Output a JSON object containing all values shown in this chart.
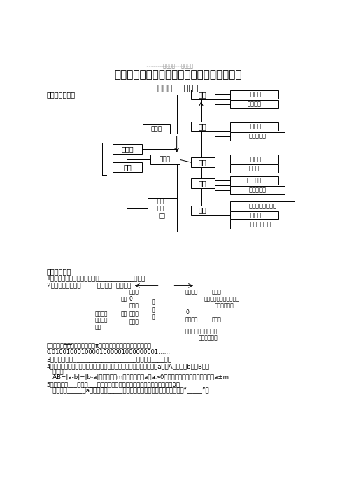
{
  "title": "新课标人教版数学七年级（上）知识要点概括",
  "subtitle": "学习必备    免费下载",
  "chapter": "第一章    有理数",
  "section1": "一、知识结构：",
  "section2": "二、知识点：",
  "bg_color": "#ffffff",
  "right_boxes": [
    [
      "加法法则",
      345,
      58,
      88,
      16
    ],
    [
      "加法运算",
      345,
      76,
      88,
      16
    ],
    [
      "减法法则",
      345,
      118,
      88,
      16
    ],
    [
      "加减混合运",
      345,
      136,
      100,
      16
    ],
    [
      "乘法法则",
      345,
      178,
      88,
      16
    ],
    [
      "运算律",
      345,
      196,
      88,
      16
    ],
    [
      "除 法 法",
      345,
      218,
      88,
      16
    ],
    [
      "乘除混合运",
      345,
      236,
      100,
      16
    ],
    [
      "乘方运算、混合运",
      345,
      265,
      118,
      16
    ],
    [
      "科学记数",
      345,
      283,
      88,
      14
    ],
    [
      "近似数与有效数",
      345,
      299,
      118,
      16
    ]
  ],
  "mid_boxes": [
    [
      "加法",
      272,
      57,
      44,
      18
    ],
    [
      "减法",
      272,
      117,
      44,
      18
    ],
    [
      "乘法",
      272,
      183,
      44,
      18
    ],
    [
      "除法",
      272,
      222,
      44,
      18
    ],
    [
      "乘方",
      272,
      272,
      44,
      18
    ]
  ],
  "kp1": "1．正数和负数是表示两种具有___________的量．",
  "kp2_header": "2．有理数的分类：        按定义分  按符号分",
  "kp3": "3．数轴三要素是___________________，数轴是____线．",
  "kp4a": "4．数轴上的两点之间的距离就是表示这两个点的数的绝对値：表示数a的点A与表示数b的点B之间",
  "kp4b": "   的距离",
  "kp4c": "   AB=|a-b|=|b-a|，与表示数m的点的距离为a（a>0）的点有两个：它们表示的数是a±m",
  "kp5a": "5．数轴上，___两侧到___的距离相等的两个数互为相反数（几何定义），0的",
  "kp5b": "   相反数是_____，a的相反数是_____，求一个数的相反数就是在这个数前添“_____”号",
  "note_line1": "注意：常见的不是有理数的数有π和有规律的但不循环的小数．如：",
  "note_line2": "0.01001000100001000001000000001……"
}
